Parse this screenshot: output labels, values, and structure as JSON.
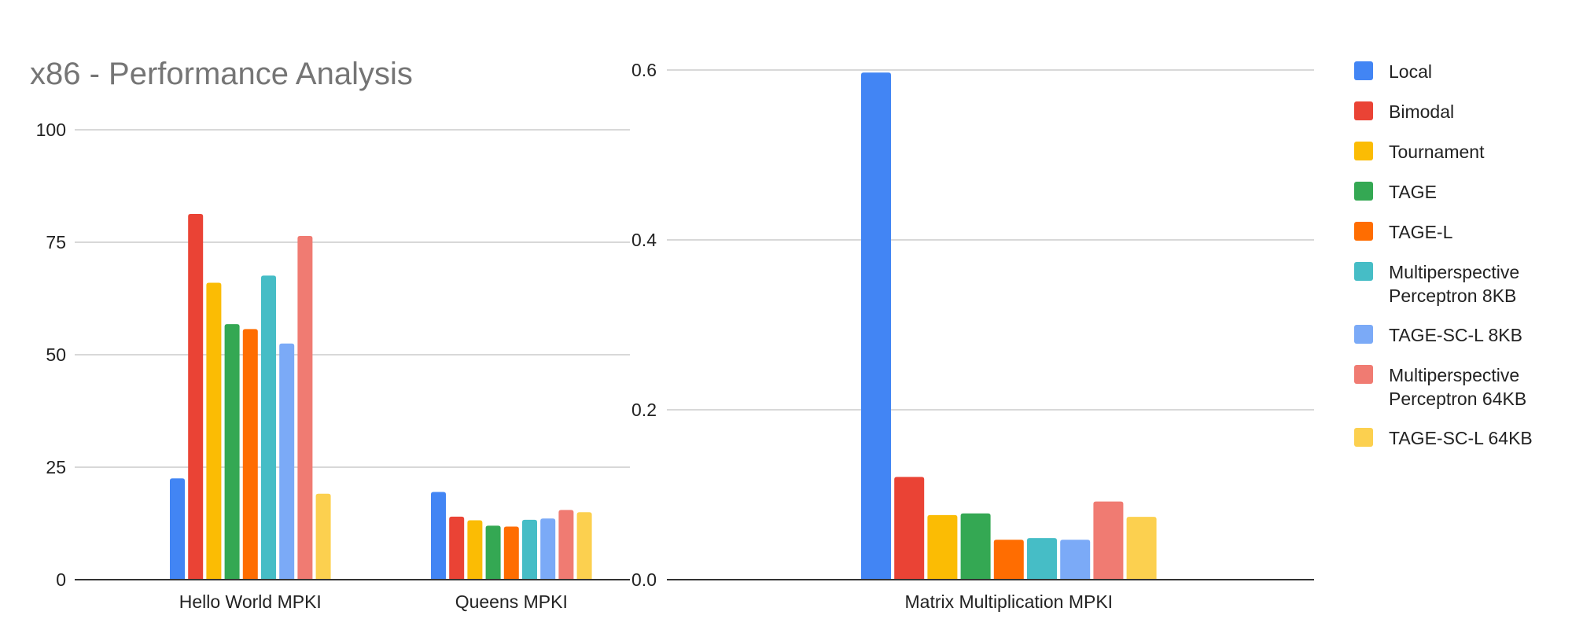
{
  "title": "x86 - Performance Analysis",
  "chart_data": [
    {
      "type": "bar",
      "categories": [
        "Hello World MPKI",
        "Queens MPKI"
      ],
      "ylim": [
        0,
        100
      ],
      "yticks": [
        "0",
        "25",
        "50",
        "75",
        "100"
      ],
      "series": [
        {
          "name": "Local",
          "values": [
            22.5,
            19.5
          ]
        },
        {
          "name": "Bimodal",
          "values": [
            81.3,
            14.0
          ]
        },
        {
          "name": "Tournament",
          "values": [
            66.0,
            13.2
          ]
        },
        {
          "name": "TAGE",
          "values": [
            56.8,
            12.0
          ]
        },
        {
          "name": "TAGE-L",
          "values": [
            55.7,
            11.8
          ]
        },
        {
          "name": "Multiperspective Perceptron 8KB",
          "values": [
            67.6,
            13.3
          ]
        },
        {
          "name": "TAGE-SC-L 8KB",
          "values": [
            52.5,
            13.6
          ]
        },
        {
          "name": "Multiperspective Perceptron 64KB",
          "values": [
            76.4,
            15.5
          ]
        },
        {
          "name": "TAGE-SC-L 64KB",
          "values": [
            19.1,
            15.0
          ]
        }
      ]
    },
    {
      "type": "bar",
      "categories": [
        "Matrix Multiplication MPKI"
      ],
      "ylim": [
        0,
        0.6
      ],
      "yticks": [
        "0.0",
        "0.2",
        "0.4",
        "0.6"
      ],
      "series": [
        {
          "name": "Local",
          "values": [
            0.597
          ]
        },
        {
          "name": "Bimodal",
          "values": [
            0.121
          ]
        },
        {
          "name": "Tournament",
          "values": [
            0.076
          ]
        },
        {
          "name": "TAGE",
          "values": [
            0.078
          ]
        },
        {
          "name": "TAGE-L",
          "values": [
            0.047
          ]
        },
        {
          "name": "Multiperspective Perceptron 8KB",
          "values": [
            0.049
          ]
        },
        {
          "name": "TAGE-SC-L 8KB",
          "values": [
            0.047
          ]
        },
        {
          "name": "Multiperspective Perceptron 64KB",
          "values": [
            0.092
          ]
        },
        {
          "name": "TAGE-SC-L 64KB",
          "values": [
            0.074
          ]
        }
      ]
    }
  ],
  "legend": {
    "position": "right",
    "items": [
      {
        "label": "Local",
        "color": "#4285F4"
      },
      {
        "label": "Bimodal",
        "color": "#EA4335"
      },
      {
        "label": "Tournament",
        "color": "#FBBC04"
      },
      {
        "label": "TAGE",
        "color": "#34A853"
      },
      {
        "label": "TAGE-L",
        "color": "#FF6D01"
      },
      {
        "label": "Multiperspective\nPerceptron 8KB",
        "color": "#46BDC6"
      },
      {
        "label": "TAGE-SC-L 8KB",
        "color": "#7BAAF7"
      },
      {
        "label": "Multiperspective\nPerceptron 64KB",
        "color": "#F07B72"
      },
      {
        "label": "TAGE-SC-L 64KB",
        "color": "#FCD04F"
      }
    ]
  }
}
